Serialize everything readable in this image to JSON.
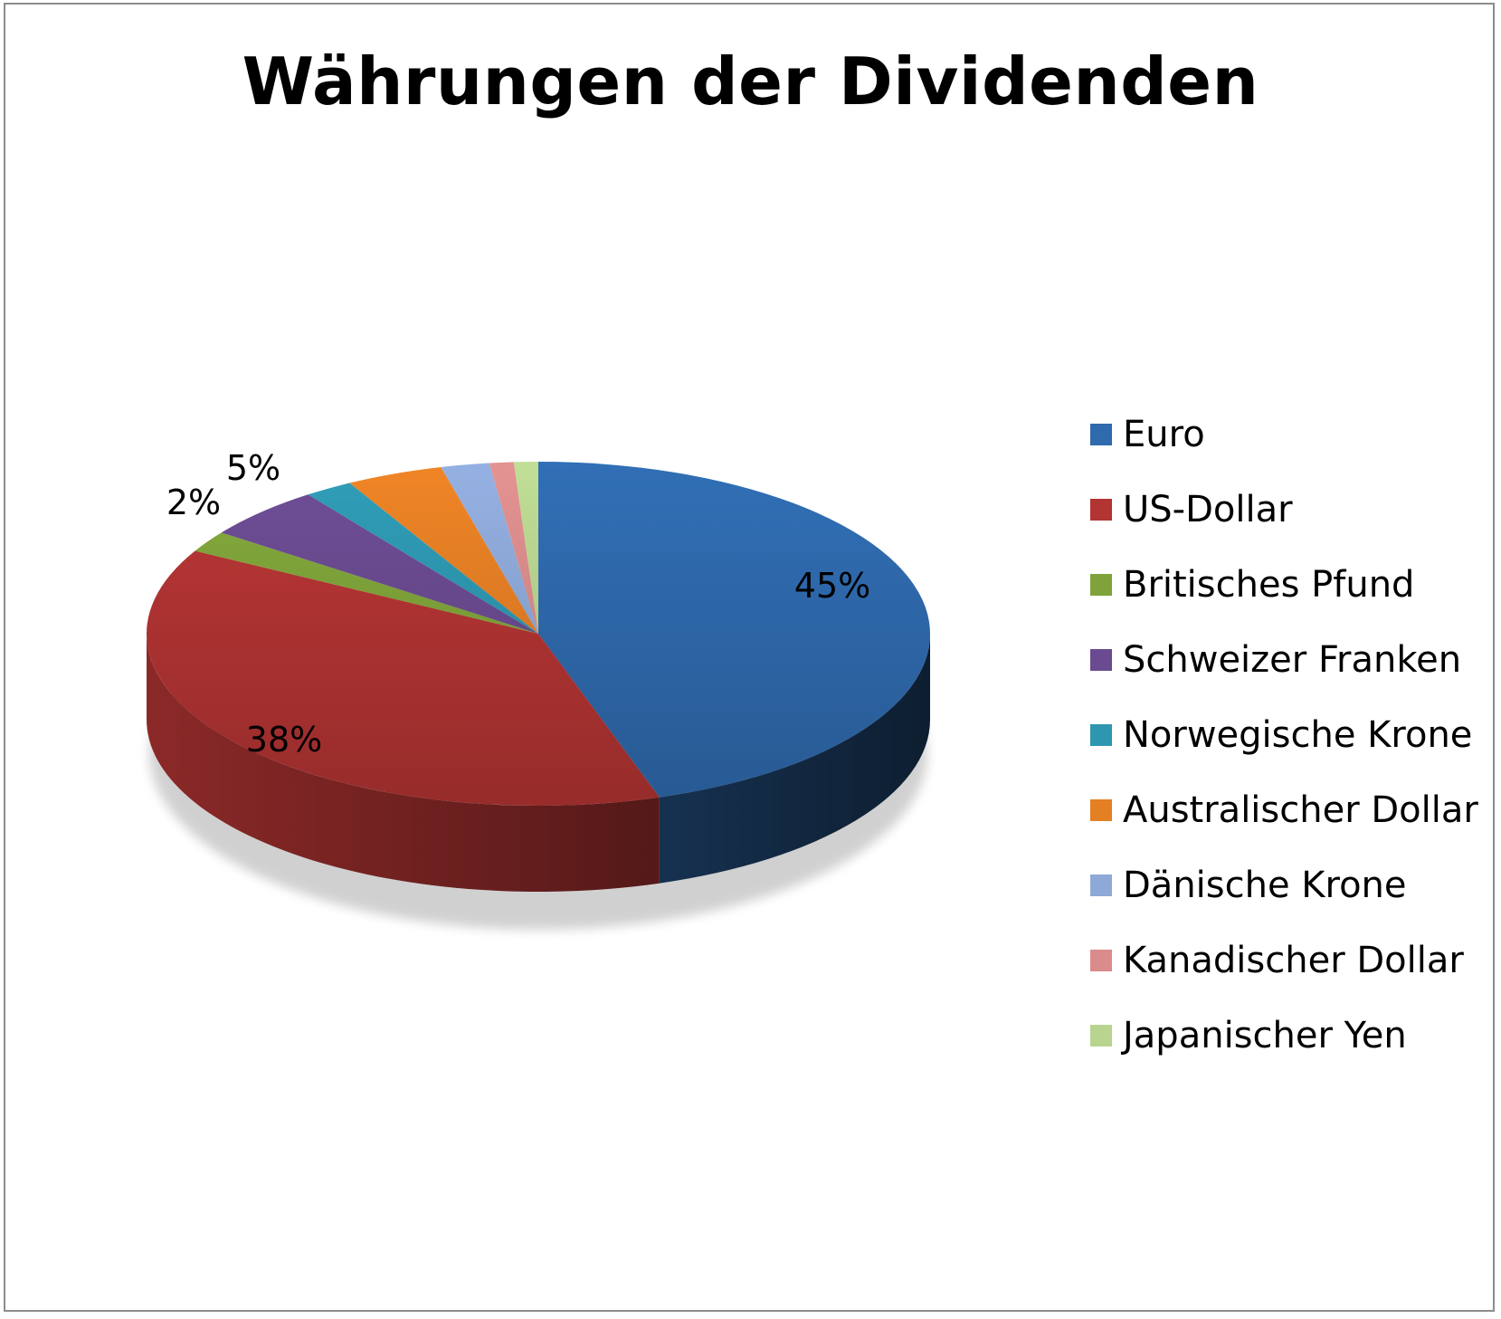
{
  "chart_data": {
    "type": "pie",
    "style": "3d",
    "title": "Währungen der Dividenden",
    "legend_position": "right",
    "slices": [
      {
        "label": "Euro",
        "value": 45,
        "data_label": "45%",
        "color": "#2f6aad"
      },
      {
        "label": "US-Dollar",
        "value": 38,
        "data_label": "38%",
        "color": "#b23433"
      },
      {
        "label": "Britisches Pfund",
        "value": 2,
        "data_label": "2%",
        "color": "#7fa33a"
      },
      {
        "label": "Schweizer Franken",
        "value": 5,
        "data_label": "5%",
        "color": "#6a4a90"
      },
      {
        "label": "Norwegische Krone",
        "value": 2,
        "data_label": "",
        "color": "#2e96b0"
      },
      {
        "label": "Australischer Dollar",
        "value": 4,
        "data_label": "",
        "color": "#e57f24"
      },
      {
        "label": "Dänische Krone",
        "value": 2,
        "data_label": "",
        "color": "#8ea9d8"
      },
      {
        "label": "Kanadischer Dollar",
        "value": 1,
        "data_label": "",
        "color": "#d98c8b"
      },
      {
        "label": "Japanischer Yen",
        "value": 1,
        "data_label": "",
        "color": "#b8d48f"
      }
    ]
  }
}
